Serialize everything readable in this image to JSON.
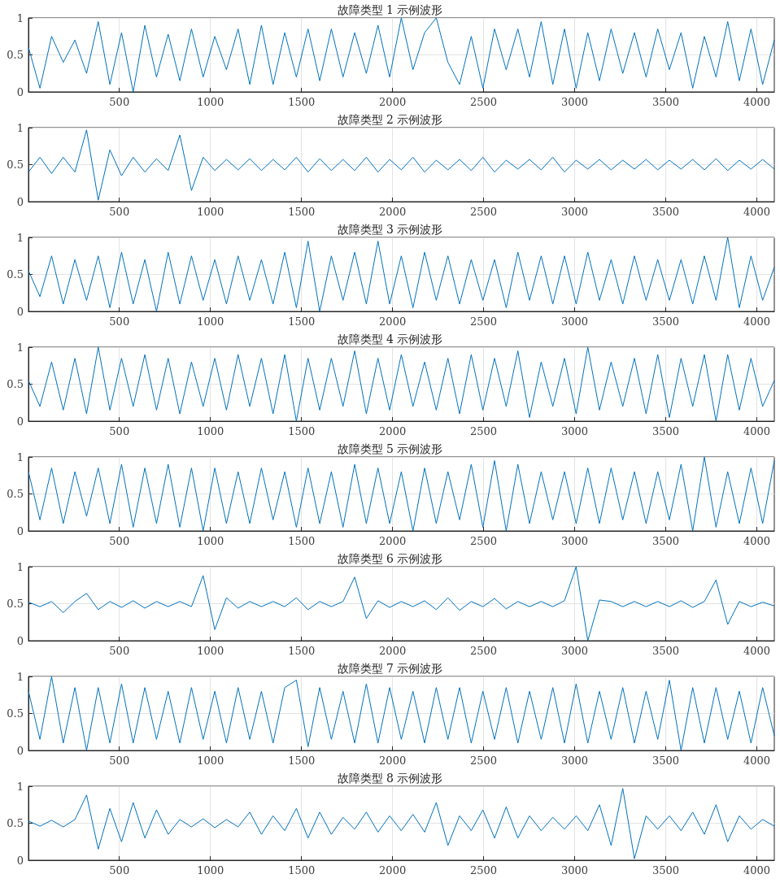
{
  "chart_data": [
    {
      "type": "line",
      "title": "故障类型 1 示例波形",
      "color": "#0072bd",
      "xlim": [
        1,
        4096
      ],
      "xticks": [
        500,
        1000,
        1500,
        2000,
        2500,
        3000,
        3500,
        4000
      ],
      "ylim": [
        0,
        1
      ],
      "yticks": [
        0,
        0.5,
        1
      ],
      "grid": true,
      "x": [
        1,
        64,
        128,
        192,
        256,
        320,
        384,
        448,
        512,
        576,
        640,
        704,
        768,
        832,
        896,
        960,
        1024,
        1088,
        1152,
        1216,
        1280,
        1344,
        1408,
        1472,
        1536,
        1600,
        1664,
        1728,
        1792,
        1856,
        1920,
        1984,
        2048,
        2112,
        2176,
        2240,
        2304,
        2368,
        2432,
        2496,
        2560,
        2624,
        2688,
        2752,
        2816,
        2880,
        2944,
        3008,
        3072,
        3136,
        3200,
        3264,
        3328,
        3392,
        3456,
        3520,
        3584,
        3648,
        3712,
        3776,
        3840,
        3904,
        3968,
        4032,
        4096
      ],
      "values": [
        0.6,
        0.05,
        0.75,
        0.4,
        0.7,
        0.25,
        0.95,
        0.1,
        0.8,
        0.0,
        0.9,
        0.2,
        0.78,
        0.15,
        0.85,
        0.2,
        0.75,
        0.3,
        0.85,
        0.1,
        0.9,
        0.1,
        0.8,
        0.2,
        0.85,
        0.15,
        0.85,
        0.2,
        0.8,
        0.25,
        0.9,
        0.2,
        1.0,
        0.3,
        0.8,
        1.0,
        0.4,
        0.1,
        0.75,
        0.05,
        0.85,
        0.3,
        0.85,
        0.2,
        0.95,
        0.1,
        0.85,
        0.05,
        0.8,
        0.15,
        0.85,
        0.25,
        0.8,
        0.2,
        0.85,
        0.3,
        0.8,
        0.05,
        0.75,
        0.2,
        0.95,
        0.15,
        0.85,
        0.1,
        0.7
      ]
    },
    {
      "type": "line",
      "title": "故障类型 2 示例波形",
      "color": "#0072bd",
      "xlim": [
        1,
        4096
      ],
      "xticks": [
        500,
        1000,
        1500,
        2000,
        2500,
        3000,
        3500,
        4000
      ],
      "ylim": [
        0,
        1
      ],
      "yticks": [
        0,
        0.5,
        1
      ],
      "grid": true,
      "x": [
        1,
        64,
        128,
        192,
        256,
        320,
        384,
        448,
        512,
        576,
        640,
        704,
        768,
        832,
        896,
        960,
        1024,
        1088,
        1152,
        1216,
        1280,
        1344,
        1408,
        1472,
        1536,
        1600,
        1664,
        1728,
        1792,
        1856,
        1920,
        1984,
        2048,
        2112,
        2176,
        2240,
        2304,
        2368,
        2432,
        2496,
        2560,
        2624,
        2688,
        2752,
        2816,
        2880,
        2944,
        3008,
        3072,
        3136,
        3200,
        3264,
        3328,
        3392,
        3456,
        3520,
        3584,
        3648,
        3712,
        3776,
        3840,
        3904,
        3968,
        4032,
        4096
      ],
      "values": [
        0.4,
        0.6,
        0.38,
        0.6,
        0.4,
        0.97,
        0.02,
        0.7,
        0.35,
        0.6,
        0.4,
        0.58,
        0.42,
        0.9,
        0.15,
        0.6,
        0.42,
        0.57,
        0.43,
        0.58,
        0.42,
        0.57,
        0.43,
        0.6,
        0.4,
        0.58,
        0.42,
        0.57,
        0.42,
        0.6,
        0.4,
        0.57,
        0.43,
        0.6,
        0.4,
        0.56,
        0.43,
        0.57,
        0.42,
        0.6,
        0.4,
        0.56,
        0.44,
        0.57,
        0.43,
        0.6,
        0.4,
        0.56,
        0.44,
        0.57,
        0.43,
        0.56,
        0.44,
        0.57,
        0.43,
        0.56,
        0.44,
        0.57,
        0.43,
        0.58,
        0.42,
        0.56,
        0.44,
        0.57,
        0.44
      ]
    },
    {
      "type": "line",
      "title": "故障类型 3 示例波形",
      "color": "#0072bd",
      "xlim": [
        1,
        4096
      ],
      "xticks": [
        500,
        1000,
        1500,
        2000,
        2500,
        3000,
        3500,
        4000
      ],
      "ylim": [
        0,
        1
      ],
      "yticks": [
        0,
        0.5,
        1
      ],
      "grid": true,
      "x": [
        1,
        64,
        128,
        192,
        256,
        320,
        384,
        448,
        512,
        576,
        640,
        704,
        768,
        832,
        896,
        960,
        1024,
        1088,
        1152,
        1216,
        1280,
        1344,
        1408,
        1472,
        1536,
        1600,
        1664,
        1728,
        1792,
        1856,
        1920,
        1984,
        2048,
        2112,
        2176,
        2240,
        2304,
        2368,
        2432,
        2496,
        2560,
        2624,
        2688,
        2752,
        2816,
        2880,
        2944,
        3008,
        3072,
        3136,
        3200,
        3264,
        3328,
        3392,
        3456,
        3520,
        3584,
        3648,
        3712,
        3776,
        3840,
        3904,
        3968,
        4032,
        4096
      ],
      "values": [
        0.55,
        0.2,
        0.75,
        0.1,
        0.7,
        0.15,
        0.75,
        0.05,
        0.8,
        0.1,
        0.7,
        0.0,
        0.8,
        0.1,
        0.75,
        0.15,
        0.7,
        0.1,
        0.75,
        0.15,
        0.7,
        0.1,
        0.8,
        0.05,
        0.95,
        0.0,
        0.75,
        0.15,
        0.8,
        0.1,
        0.95,
        0.1,
        0.75,
        0.05,
        0.8,
        0.15,
        0.75,
        0.1,
        0.7,
        0.15,
        0.7,
        0.05,
        0.8,
        0.15,
        0.75,
        0.1,
        0.75,
        0.1,
        0.8,
        0.15,
        0.7,
        0.1,
        0.75,
        0.15,
        0.7,
        0.15,
        0.7,
        0.1,
        0.75,
        0.15,
        1.0,
        0.05,
        0.75,
        0.15,
        0.6
      ]
    },
    {
      "type": "line",
      "title": "故障类型 4 示例波形",
      "color": "#0072bd",
      "xlim": [
        1,
        4096
      ],
      "xticks": [
        500,
        1000,
        1500,
        2000,
        2500,
        3000,
        3500,
        4000
      ],
      "ylim": [
        0,
        1
      ],
      "yticks": [
        0,
        0.5,
        1
      ],
      "grid": true,
      "x": [
        1,
        64,
        128,
        192,
        256,
        320,
        384,
        448,
        512,
        576,
        640,
        704,
        768,
        832,
        896,
        960,
        1024,
        1088,
        1152,
        1216,
        1280,
        1344,
        1408,
        1472,
        1536,
        1600,
        1664,
        1728,
        1792,
        1856,
        1920,
        1984,
        2048,
        2112,
        2176,
        2240,
        2304,
        2368,
        2432,
        2496,
        2560,
        2624,
        2688,
        2752,
        2816,
        2880,
        2944,
        3008,
        3072,
        3136,
        3200,
        3264,
        3328,
        3392,
        3456,
        3520,
        3584,
        3648,
        3712,
        3776,
        3840,
        3904,
        3968,
        4032,
        4096
      ],
      "values": [
        0.55,
        0.2,
        0.8,
        0.15,
        0.85,
        0.1,
        1.0,
        0.15,
        0.85,
        0.2,
        0.9,
        0.15,
        0.85,
        0.1,
        0.8,
        0.2,
        0.85,
        0.15,
        0.9,
        0.2,
        0.85,
        0.1,
        0.9,
        0.0,
        0.85,
        0.15,
        0.85,
        0.2,
        0.95,
        0.1,
        0.85,
        0.15,
        0.9,
        0.2,
        0.8,
        0.15,
        0.85,
        0.1,
        0.9,
        0.15,
        0.85,
        0.2,
        0.95,
        0.05,
        0.8,
        0.2,
        0.85,
        0.1,
        1.0,
        0.15,
        0.8,
        0.2,
        0.85,
        0.1,
        0.9,
        0.05,
        0.85,
        0.2,
        0.9,
        0.0,
        0.9,
        0.15,
        0.85,
        0.2,
        0.55
      ]
    },
    {
      "type": "line",
      "title": "故障类型 5 示例波形",
      "color": "#0072bd",
      "xlim": [
        1,
        4096
      ],
      "xticks": [
        500,
        1000,
        1500,
        2000,
        2500,
        3000,
        3500,
        4000
      ],
      "ylim": [
        0,
        1
      ],
      "yticks": [
        0,
        0.5,
        1
      ],
      "grid": true,
      "x": [
        1,
        64,
        128,
        192,
        256,
        320,
        384,
        448,
        512,
        576,
        640,
        704,
        768,
        832,
        896,
        960,
        1024,
        1088,
        1152,
        1216,
        1280,
        1344,
        1408,
        1472,
        1536,
        1600,
        1664,
        1728,
        1792,
        1856,
        1920,
        1984,
        2048,
        2112,
        2176,
        2240,
        2304,
        2368,
        2432,
        2496,
        2560,
        2624,
        2688,
        2752,
        2816,
        2880,
        2944,
        3008,
        3072,
        3136,
        3200,
        3264,
        3328,
        3392,
        3456,
        3520,
        3584,
        3648,
        3712,
        3776,
        3840,
        3904,
        3968,
        4032,
        4096
      ],
      "values": [
        0.8,
        0.15,
        0.85,
        0.1,
        0.8,
        0.2,
        0.85,
        0.1,
        0.9,
        0.05,
        0.85,
        0.1,
        0.9,
        0.05,
        0.85,
        0.0,
        0.85,
        0.1,
        0.8,
        0.1,
        0.85,
        0.15,
        0.8,
        0.05,
        0.85,
        0.1,
        0.8,
        0.05,
        0.9,
        0.1,
        0.85,
        0.1,
        0.8,
        0.0,
        0.85,
        0.1,
        0.8,
        0.15,
        0.9,
        0.05,
        0.95,
        0.0,
        0.9,
        0.1,
        0.8,
        0.15,
        0.8,
        0.1,
        0.85,
        0.1,
        0.85,
        0.15,
        0.8,
        0.1,
        0.8,
        0.15,
        0.9,
        0.0,
        1.0,
        0.05,
        0.8,
        0.1,
        0.85,
        0.1,
        0.95
      ]
    },
    {
      "type": "line",
      "title": "故障类型 6 示例波形",
      "color": "#0072bd",
      "xlim": [
        1,
        4096
      ],
      "xticks": [
        500,
        1000,
        1500,
        2000,
        2500,
        3000,
        3500,
        4000
      ],
      "ylim": [
        0,
        1
      ],
      "yticks": [
        0,
        0.5,
        1
      ],
      "grid": true,
      "x": [
        1,
        64,
        128,
        192,
        256,
        320,
        384,
        448,
        512,
        576,
        640,
        704,
        768,
        832,
        896,
        960,
        1024,
        1088,
        1152,
        1216,
        1280,
        1344,
        1408,
        1472,
        1536,
        1600,
        1664,
        1728,
        1792,
        1856,
        1920,
        1984,
        2048,
        2112,
        2176,
        2240,
        2304,
        2368,
        2432,
        2496,
        2560,
        2624,
        2688,
        2752,
        2816,
        2880,
        2944,
        3008,
        3072,
        3136,
        3200,
        3264,
        3328,
        3392,
        3456,
        3520,
        3584,
        3648,
        3712,
        3776,
        3840,
        3904,
        3968,
        4032,
        4096
      ],
      "values": [
        0.52,
        0.46,
        0.53,
        0.38,
        0.53,
        0.64,
        0.42,
        0.53,
        0.45,
        0.54,
        0.44,
        0.53,
        0.46,
        0.53,
        0.46,
        0.88,
        0.15,
        0.58,
        0.44,
        0.53,
        0.46,
        0.53,
        0.46,
        0.58,
        0.42,
        0.53,
        0.46,
        0.53,
        0.86,
        0.3,
        0.54,
        0.45,
        0.53,
        0.46,
        0.54,
        0.42,
        0.58,
        0.41,
        0.53,
        0.46,
        0.57,
        0.43,
        0.53,
        0.46,
        0.53,
        0.46,
        0.54,
        1.0,
        0.0,
        0.55,
        0.53,
        0.46,
        0.53,
        0.46,
        0.53,
        0.46,
        0.54,
        0.45,
        0.53,
        0.82,
        0.22,
        0.53,
        0.46,
        0.52,
        0.47
      ]
    },
    {
      "type": "line",
      "title": "故障类型 7 示例波形",
      "color": "#0072bd",
      "xlim": [
        1,
        4096
      ],
      "xticks": [
        500,
        1000,
        1500,
        2000,
        2500,
        3000,
        3500,
        4000
      ],
      "ylim": [
        0,
        1
      ],
      "yticks": [
        0,
        0.5,
        1
      ],
      "grid": true,
      "x": [
        1,
        64,
        128,
        192,
        256,
        320,
        384,
        448,
        512,
        576,
        640,
        704,
        768,
        832,
        896,
        960,
        1024,
        1088,
        1152,
        1216,
        1280,
        1344,
        1408,
        1472,
        1536,
        1600,
        1664,
        1728,
        1792,
        1856,
        1920,
        1984,
        2048,
        2112,
        2176,
        2240,
        2304,
        2368,
        2432,
        2496,
        2560,
        2624,
        2688,
        2752,
        2816,
        2880,
        2944,
        3008,
        3072,
        3136,
        3200,
        3264,
        3328,
        3392,
        3456,
        3520,
        3584,
        3648,
        3712,
        3776,
        3840,
        3904,
        3968,
        4032,
        4096
      ],
      "values": [
        0.8,
        0.15,
        1.0,
        0.1,
        0.85,
        0.0,
        0.85,
        0.1,
        0.9,
        0.1,
        0.85,
        0.15,
        0.8,
        0.1,
        0.85,
        0.15,
        0.8,
        0.1,
        0.85,
        0.15,
        0.8,
        0.1,
        0.85,
        0.95,
        0.05,
        0.85,
        0.15,
        0.8,
        0.1,
        0.9,
        0.1,
        0.85,
        0.15,
        0.8,
        0.1,
        0.85,
        0.15,
        0.85,
        0.1,
        0.8,
        0.15,
        0.85,
        0.1,
        0.8,
        0.15,
        0.85,
        0.1,
        0.9,
        0.1,
        0.8,
        0.15,
        0.85,
        0.1,
        0.8,
        0.15,
        0.95,
        0.0,
        0.85,
        0.1,
        0.85,
        0.15,
        0.8,
        0.1,
        0.85,
        0.2
      ]
    },
    {
      "type": "line",
      "title": "故障类型 8 示例波形",
      "color": "#0072bd",
      "xlim": [
        1,
        4096
      ],
      "xticks": [
        500,
        1000,
        1500,
        2000,
        2500,
        3000,
        3500,
        4000
      ],
      "ylim": [
        0,
        1
      ],
      "yticks": [
        0,
        0.5,
        1
      ],
      "grid": true,
      "x": [
        1,
        64,
        128,
        192,
        256,
        320,
        384,
        448,
        512,
        576,
        640,
        704,
        768,
        832,
        896,
        960,
        1024,
        1088,
        1152,
        1216,
        1280,
        1344,
        1408,
        1472,
        1536,
        1600,
        1664,
        1728,
        1792,
        1856,
        1920,
        1984,
        2048,
        2112,
        2176,
        2240,
        2304,
        2368,
        2432,
        2496,
        2560,
        2624,
        2688,
        2752,
        2816,
        2880,
        2944,
        3008,
        3072,
        3136,
        3200,
        3264,
        3328,
        3392,
        3456,
        3520,
        3584,
        3648,
        3712,
        3776,
        3840,
        3904,
        3968,
        4032,
        4096
      ],
      "values": [
        0.53,
        0.46,
        0.54,
        0.45,
        0.55,
        0.88,
        0.15,
        0.7,
        0.25,
        0.78,
        0.3,
        0.68,
        0.35,
        0.55,
        0.45,
        0.56,
        0.44,
        0.55,
        0.45,
        0.65,
        0.35,
        0.6,
        0.4,
        0.7,
        0.3,
        0.65,
        0.35,
        0.58,
        0.42,
        0.65,
        0.38,
        0.6,
        0.4,
        0.62,
        0.38,
        0.78,
        0.2,
        0.6,
        0.4,
        0.68,
        0.3,
        0.72,
        0.3,
        0.6,
        0.4,
        0.58,
        0.42,
        0.6,
        0.4,
        0.75,
        0.2,
        0.97,
        0.02,
        0.6,
        0.42,
        0.6,
        0.4,
        0.65,
        0.35,
        0.75,
        0.25,
        0.6,
        0.42,
        0.55,
        0.46
      ]
    }
  ]
}
